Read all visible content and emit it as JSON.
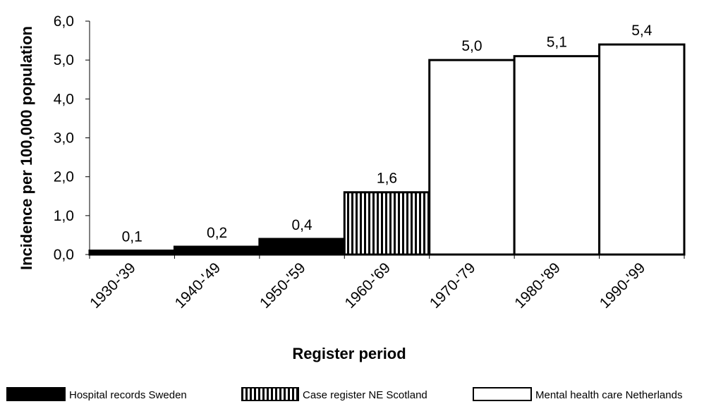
{
  "chart_data": {
    "type": "bar",
    "xlabel": "Register period",
    "ylabel": "Incidence per 100,000 population",
    "ylim": [
      0,
      6
    ],
    "yticks": [
      "0,0",
      "1,0",
      "2,0",
      "3,0",
      "4,0",
      "5,0",
      "6,0"
    ],
    "grid": false,
    "bar_gap": "none",
    "categories": [
      "1930-'39",
      "1940-'49",
      "1950-'59",
      "1960-'69",
      "1970-'79",
      "1980-'89",
      "1990-'99"
    ],
    "values": [
      0.1,
      0.2,
      0.4,
      1.6,
      5.0,
      5.1,
      5.4
    ],
    "value_labels": [
      "0,1",
      "0,2",
      "0,4",
      "1,6",
      "5,0",
      "5,1",
      "5,4"
    ],
    "bar_source": [
      0,
      0,
      0,
      1,
      2,
      2,
      2
    ],
    "legend_position": "bottom",
    "legend": [
      {
        "label": "Hospital records Sweden",
        "pattern": "solid",
        "color": "#000000"
      },
      {
        "label": "Case register NE Scotland",
        "pattern": "vertical-stripes",
        "color": "#000000"
      },
      {
        "label": "Mental health care Netherlands",
        "pattern": "empty",
        "color": "#ffffff"
      }
    ]
  }
}
